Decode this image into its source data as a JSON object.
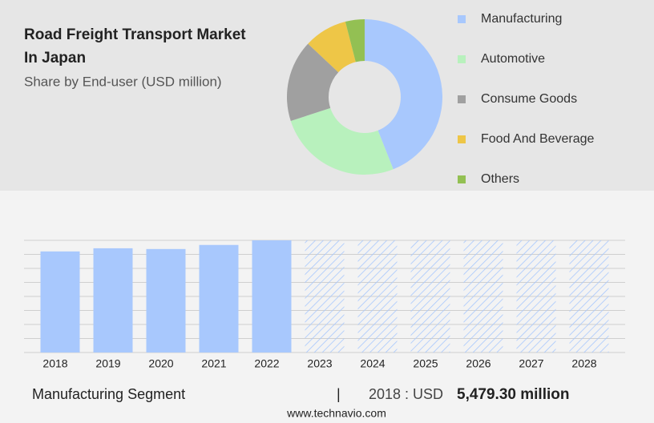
{
  "chart_data": [
    {
      "type": "donut",
      "title": [
        "Road Freight Transport Market",
        "In Japan"
      ],
      "subtitle": "Share by End-user (USD million)",
      "categories": [
        "Manufacturing",
        "Automotive",
        "Consume Goods",
        "Food And Beverage",
        "Others"
      ],
      "values": [
        44,
        26,
        17,
        9,
        4
      ],
      "colors": [
        "#a8c8fd",
        "#b8f1bd",
        "#a0a0a0",
        "#eec647",
        "#93c053"
      ],
      "legend": "right"
    },
    {
      "type": "bar",
      "categories": [
        "2018",
        "2019",
        "2020",
        "2021",
        "2022",
        "2023",
        "2024",
        "2025",
        "2026",
        "2027",
        "2028"
      ],
      "values": [
        5479.3,
        5650,
        5610,
        5830,
        6080,
        null,
        null,
        null,
        null,
        null,
        null
      ],
      "color": "#a8c8fd",
      "ylim": [
        0,
        6080
      ],
      "yticks": [
        0,
        760,
        1520,
        2280,
        3040,
        3800,
        4560,
        5320,
        6080
      ],
      "grid": true
    }
  ],
  "footer": {
    "segment": "Manufacturing Segment",
    "separator": "|",
    "year_label": "2018 : USD",
    "highlight": "5,479.30 million"
  },
  "source": "www.technavio.com"
}
